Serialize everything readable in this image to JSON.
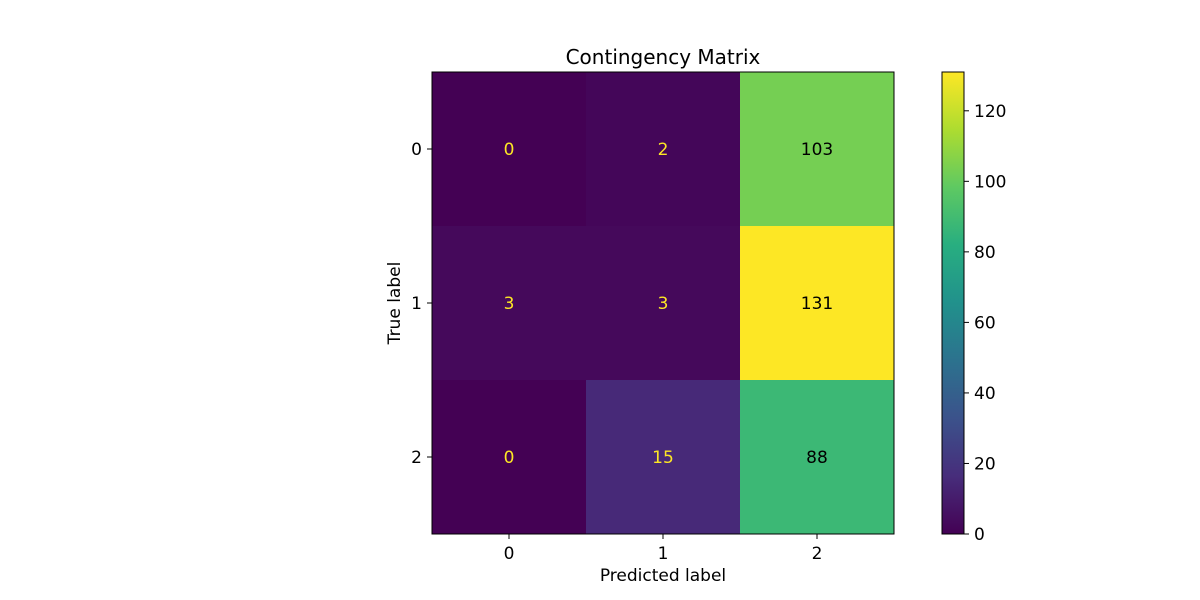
{
  "chart_data": {
    "type": "heatmap",
    "title": "Contingency Matrix",
    "xlabel": "Predicted label",
    "ylabel": "True label",
    "x_categories": [
      "0",
      "1",
      "2"
    ],
    "y_categories": [
      "0",
      "1",
      "2"
    ],
    "values": [
      [
        0,
        2,
        103
      ],
      [
        3,
        3,
        131
      ],
      [
        0,
        15,
        88
      ]
    ],
    "colormap": "viridis",
    "colorbar_range": [
      0,
      131
    ],
    "colorbar_ticks": [
      "0",
      "20",
      "40",
      "60",
      "80",
      "100",
      "120"
    ],
    "grid": false,
    "legend": "colorbar-right",
    "text_color_dark": "#000000",
    "text_color_light": "#fde725"
  }
}
